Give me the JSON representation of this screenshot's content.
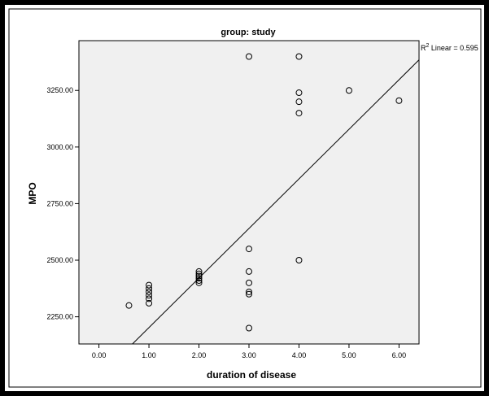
{
  "chart_data": {
    "type": "scatter",
    "title": "group: study",
    "xlabel": "duration of disease",
    "ylabel": "MPO",
    "xlim": [
      -0.4,
      6.4
    ],
    "ylim": [
      2130,
      3470
    ],
    "x_ticks": [
      "0.00",
      "1.00",
      "2.00",
      "3.00",
      "4.00",
      "5.00",
      "6.00"
    ],
    "x_tick_values": [
      0,
      1,
      2,
      3,
      4,
      5,
      6
    ],
    "y_ticks": [
      "2250.00",
      "2500.00",
      "2750.00",
      "3000.00",
      "3250.00"
    ],
    "y_tick_values": [
      2250,
      2500,
      2750,
      3000,
      3250
    ],
    "grid": false,
    "points": [
      {
        "x": 0.6,
        "y": 2300
      },
      {
        "x": 1.0,
        "y": 2390
      },
      {
        "x": 1.0,
        "y": 2375
      },
      {
        "x": 1.0,
        "y": 2360
      },
      {
        "x": 1.0,
        "y": 2345
      },
      {
        "x": 1.0,
        "y": 2330
      },
      {
        "x": 1.0,
        "y": 2310
      },
      {
        "x": 2.0,
        "y": 2450
      },
      {
        "x": 2.0,
        "y": 2440
      },
      {
        "x": 2.0,
        "y": 2430
      },
      {
        "x": 2.0,
        "y": 2420
      },
      {
        "x": 2.0,
        "y": 2410
      },
      {
        "x": 2.0,
        "y": 2400
      },
      {
        "x": 3.0,
        "y": 3400
      },
      {
        "x": 3.0,
        "y": 2550
      },
      {
        "x": 3.0,
        "y": 2450
      },
      {
        "x": 3.0,
        "y": 2400
      },
      {
        "x": 3.0,
        "y": 2360
      },
      {
        "x": 3.0,
        "y": 2350
      },
      {
        "x": 3.0,
        "y": 2200
      },
      {
        "x": 4.0,
        "y": 3400
      },
      {
        "x": 4.0,
        "y": 3240
      },
      {
        "x": 4.0,
        "y": 3200
      },
      {
        "x": 4.0,
        "y": 3150
      },
      {
        "x": 4.0,
        "y": 2500
      },
      {
        "x": 5.0,
        "y": 3250
      },
      {
        "x": 6.0,
        "y": 3205
      }
    ],
    "fit_line": {
      "x": [
        0.67,
        6.4
      ],
      "y": [
        2130,
        3385
      ]
    },
    "fit_label": {
      "prefix": "R",
      "sup": "2",
      "text": " Linear = 0.595"
    },
    "colors": {
      "plot_background": "#f0f0f0",
      "marker_stroke": "#000000",
      "frame": "#000000"
    }
  }
}
